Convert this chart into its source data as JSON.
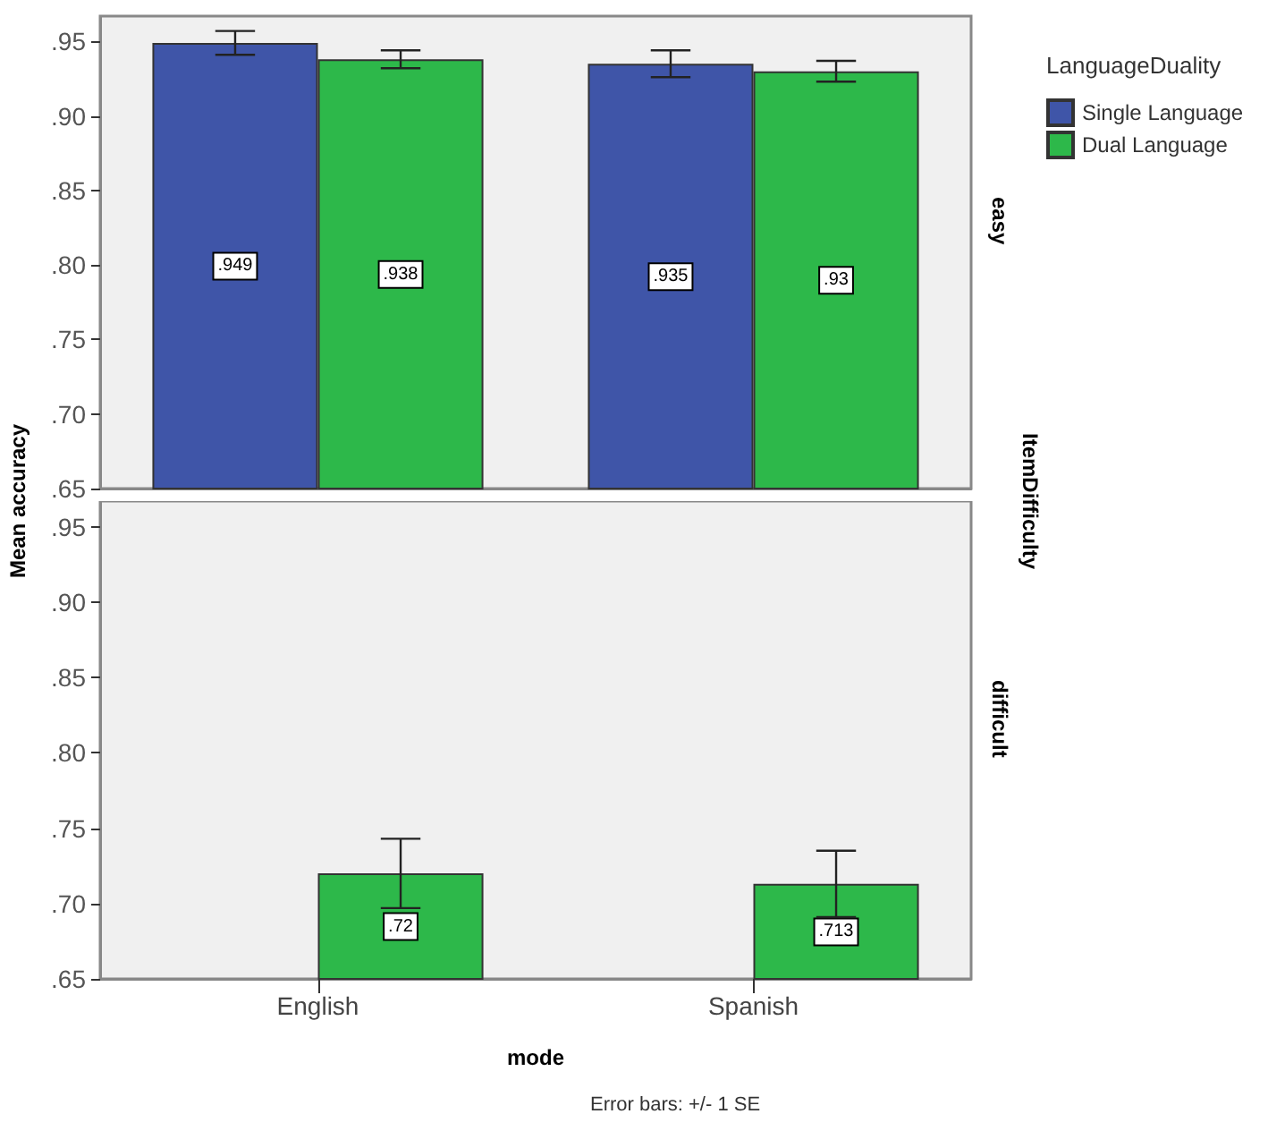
{
  "chart_data": [
    {
      "type": "bar",
      "ylabel": "Mean accuracy",
      "legend_title": "LanguageDuality",
      "legend": "right",
      "categories": [
        null,
        null
      ],
      "series": [
        {
          "name": "Single Language",
          "color": "#3f55a8",
          "values": [
            0.949,
            0.935
          ],
          "value_labels": [
            ".949",
            ".935"
          ],
          "errors": [
            0.008,
            0.009
          ]
        },
        {
          "name": "Dual Language",
          "color": "#2db84a",
          "values": [
            0.938,
            0.93
          ],
          "value_labels": [
            ".938",
            ".93"
          ],
          "errors": [
            0.006,
            0.007
          ]
        }
      ],
      "ylim": [
        0.65,
        0.967
      ],
      "yticks": [
        {
          "value": 0.65,
          "label": ".65"
        },
        {
          "value": 0.7,
          "label": ".70"
        },
        {
          "value": 0.75,
          "label": ".75"
        },
        {
          "value": 0.8,
          "label": ".80"
        },
        {
          "value": 0.85,
          "label": ".85"
        },
        {
          "value": 0.9,
          "label": ".90"
        },
        {
          "value": 0.95,
          "label": ".95"
        }
      ],
      "grid": false,
      "tick_labels": "y",
      "annotations": [
        "easy",
        "ItemDifficulty"
      ]
    },
    {
      "type": "bar",
      "xlabel": "mode",
      "categories": [
        "English",
        "Spanish"
      ],
      "series": [
        {
          "color": "#3f55a8",
          "values": [
            null,
            null
          ],
          "errors": [
            null,
            null
          ]
        },
        {
          "color": "#2db84a",
          "values": [
            0.72,
            0.713
          ],
          "value_labels": [
            ".72",
            ".713"
          ],
          "errors": [
            0.023,
            0.022
          ]
        }
      ],
      "ylim": [
        0.65,
        0.967
      ],
      "yticks": [
        {
          "value": 0.65,
          "label": ".65"
        },
        {
          "value": 0.7,
          "label": ".70"
        },
        {
          "value": 0.75,
          "label": ".75"
        },
        {
          "value": 0.8,
          "label": ".80"
        },
        {
          "value": 0.85,
          "label": ".85"
        },
        {
          "value": 0.9,
          "label": ".90"
        },
        {
          "value": 0.95,
          "label": ".95"
        }
      ],
      "grid": false,
      "annotations": [
        "difficult",
        "Error bars: +/- 1 SE"
      ]
    }
  ]
}
